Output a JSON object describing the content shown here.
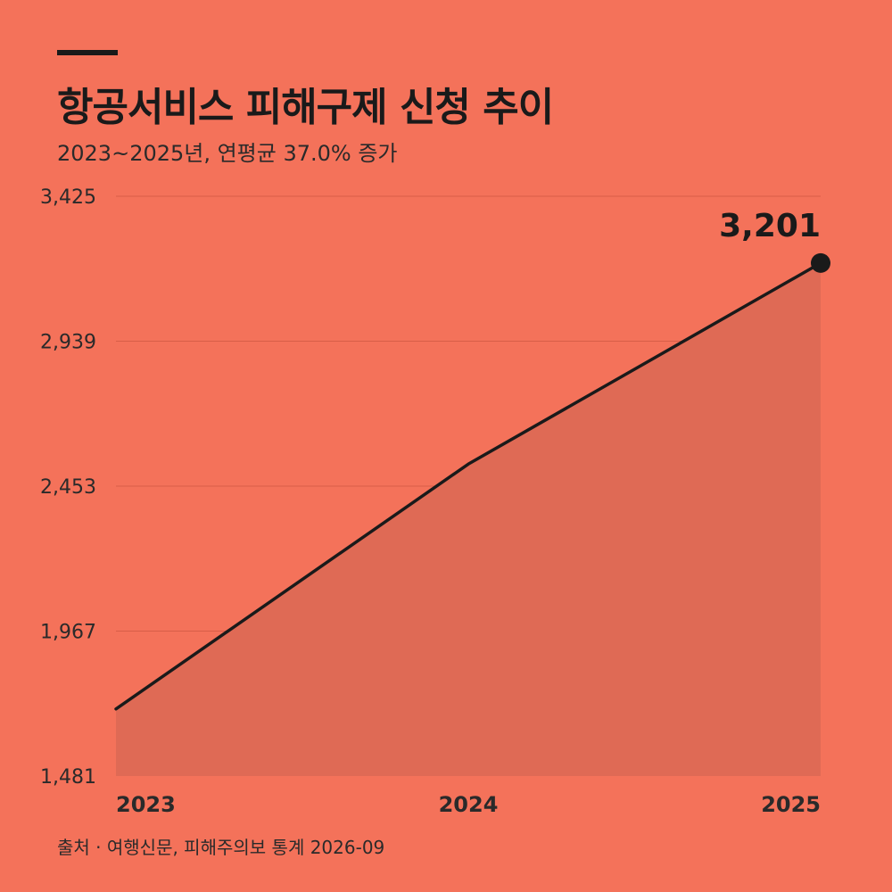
{
  "header": {
    "title": "항공서비스 피해구제 신청 추이",
    "subtitle": "2023~2025년, 연평균 37.0% 증가"
  },
  "footer": {
    "source": "출처 · 여행신문, 피해주의보 통계 2026-09"
  },
  "colors": {
    "background": "#F4725A",
    "area_fill": "#DF6A55",
    "line": "#1a1a1a",
    "grid": "#D85E48"
  },
  "chart_data": {
    "type": "area",
    "x": [
      "2023",
      "2024",
      "2025"
    ],
    "values": [
      1706,
      2527,
      3201
    ],
    "ylim": [
      1481,
      3425
    ],
    "y_ticks": [
      "1,481",
      "1,967",
      "2,453",
      "2,939",
      "3,425"
    ],
    "y_tick_values": [
      1481,
      1967,
      2453,
      2939,
      3425
    ],
    "highlight_label": "3,201",
    "highlight_index": 2,
    "grid": true,
    "legend": false
  }
}
